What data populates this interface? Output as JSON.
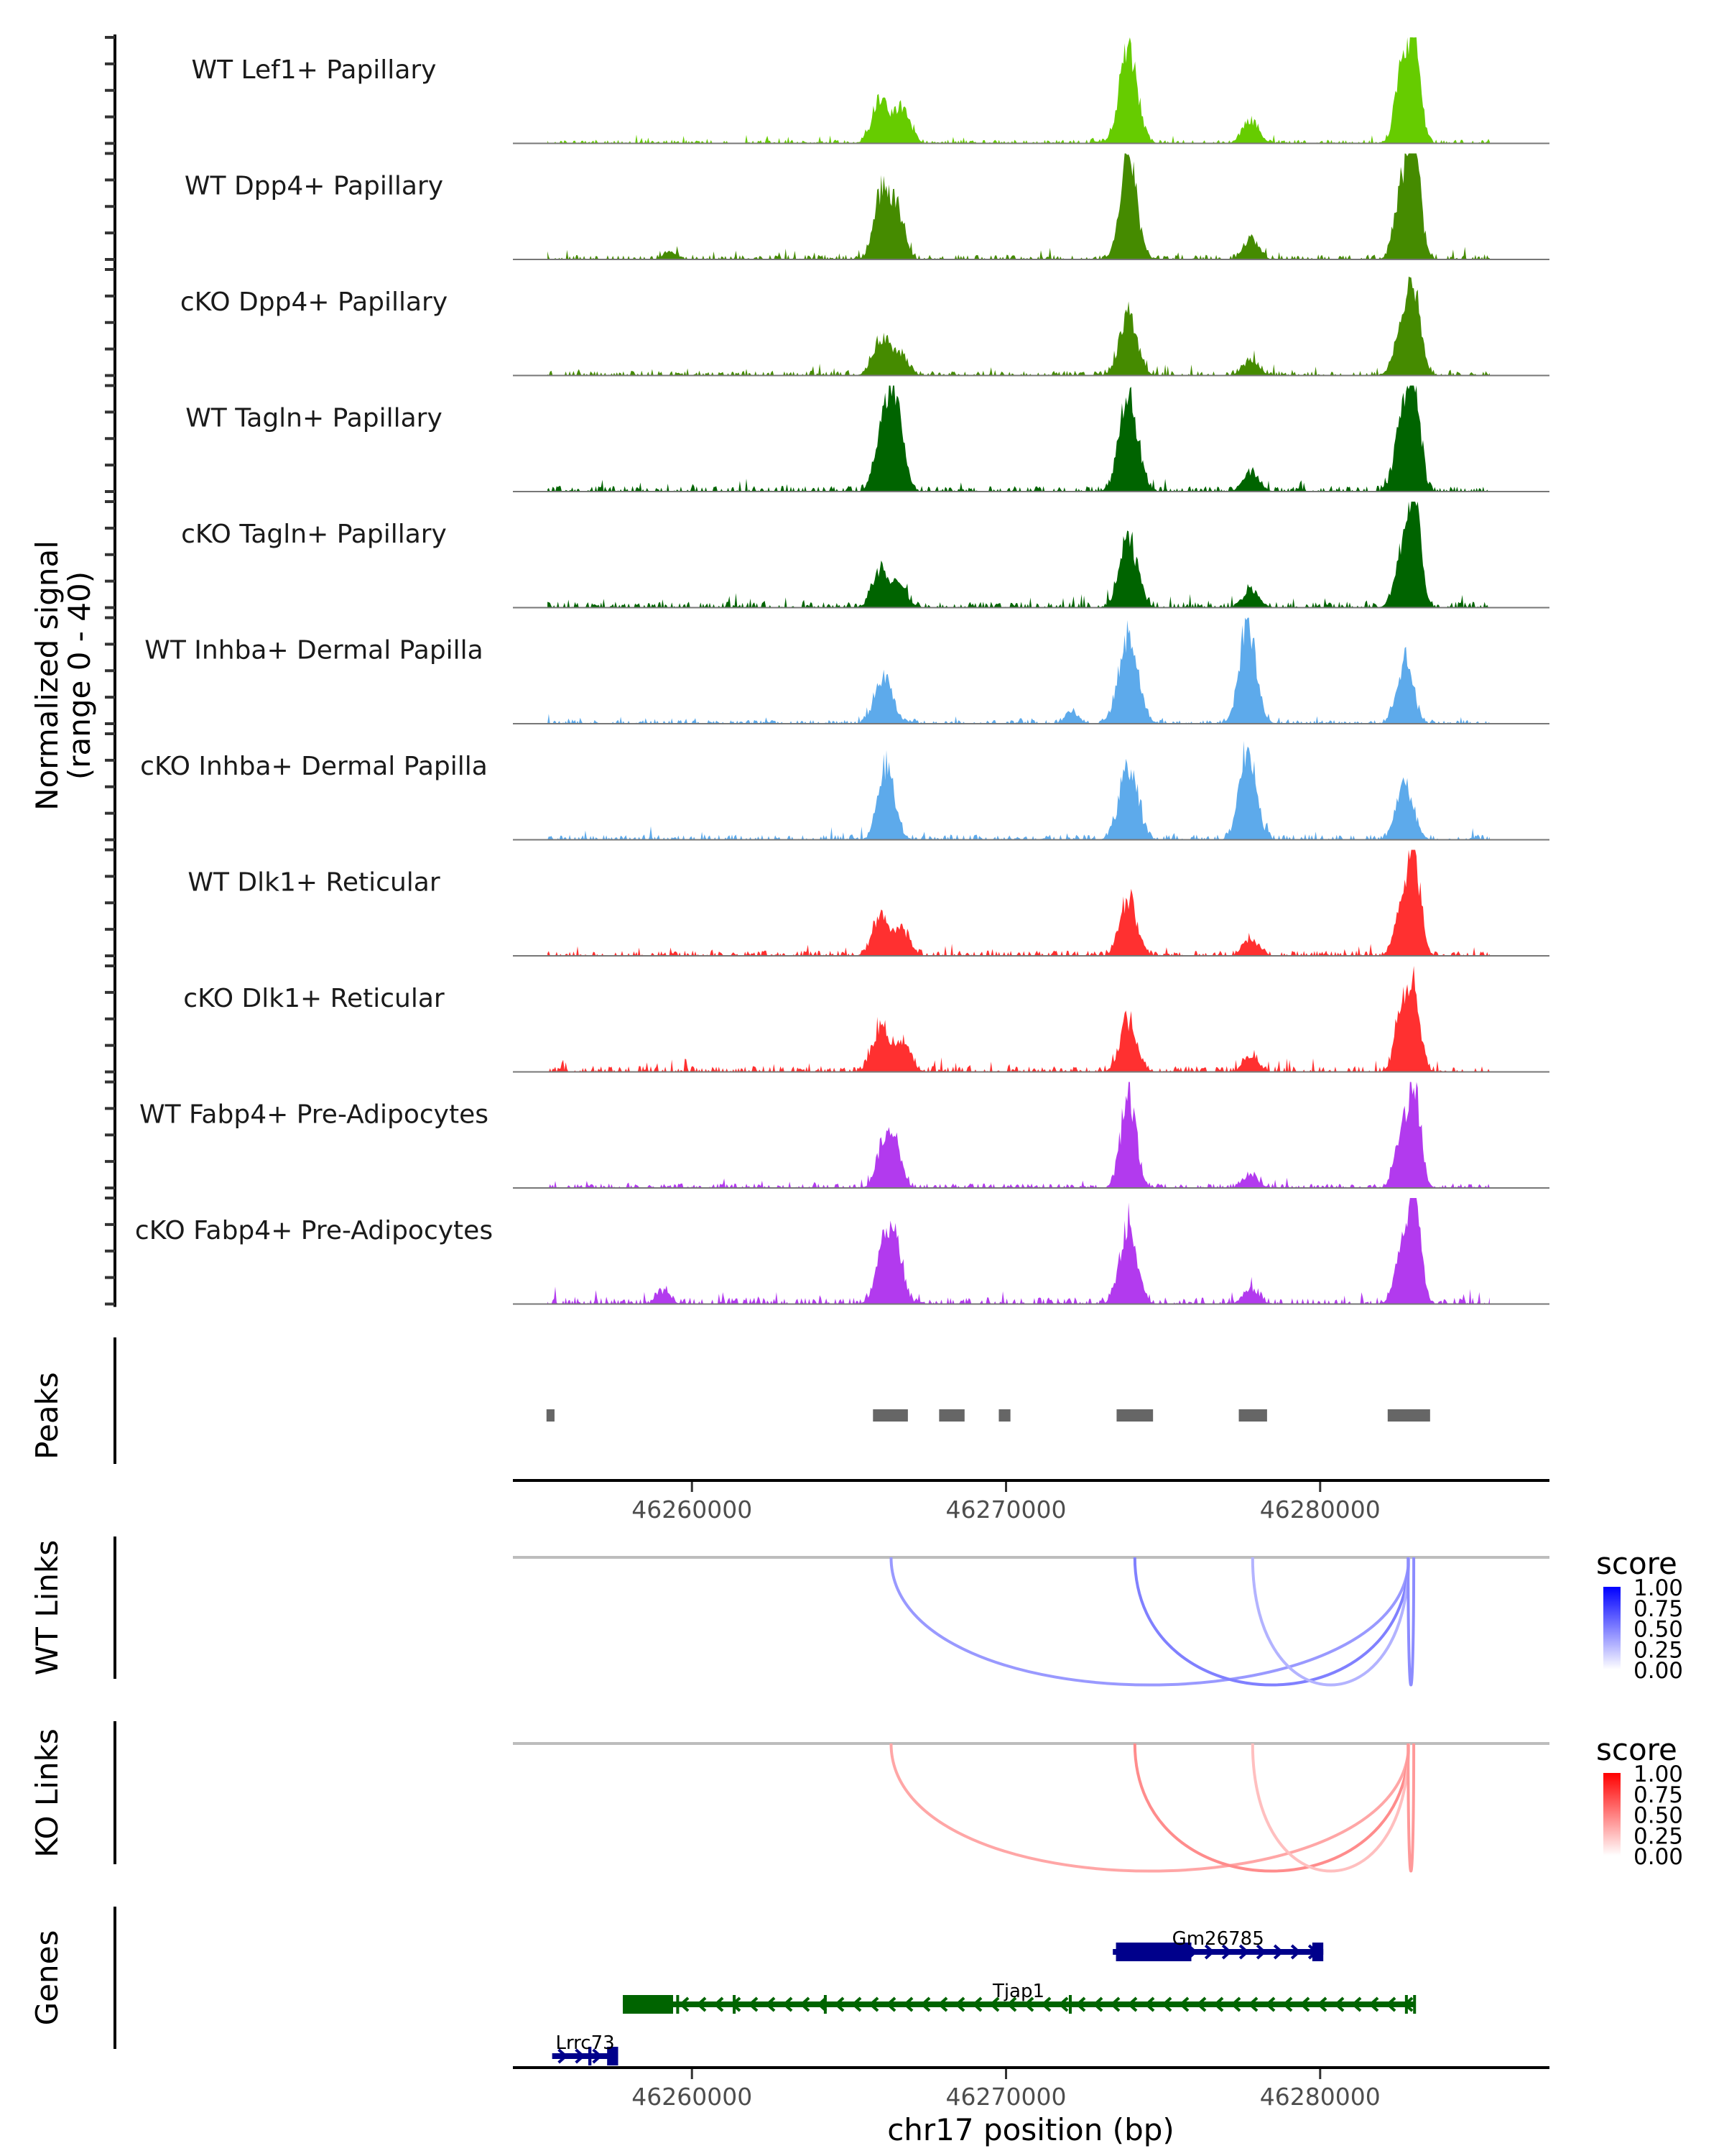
{
  "chart_data": {
    "type": "area",
    "title": "",
    "xlabel": "chr17 position (bp)",
    "ylabel": "Normalized signal\n(range 0 - 40)",
    "ylabel_lines": [
      "Normalized signal",
      "(range 0 - 40)"
    ],
    "chromosome": "chr17",
    "xlim": [
      46254300,
      46287300
    ],
    "ylim": [
      0,
      40
    ],
    "x_ticks": [
      46260000,
      46270000,
      46280000
    ],
    "x_tick_labels": [
      "46260000",
      "46270000",
      "46280000"
    ],
    "grid": false,
    "coverage_tracks": [
      {
        "name": "WT Lef1+ Papillary",
        "color": "#66CC00",
        "peaks": [
          [
            46266000,
            18,
            250
          ],
          [
            46266700,
            13,
            250
          ],
          [
            46273900,
            38,
            280
          ],
          [
            46277800,
            9,
            250
          ],
          [
            46282600,
            26,
            220
          ],
          [
            46283000,
            38,
            200
          ],
          [
            46285700,
            2,
            200
          ]
        ],
        "noise": 1.0
      },
      {
        "name": "WT Dpp4+ Papillary",
        "color": "#458B00",
        "peaks": [
          [
            46266000,
            24,
            230
          ],
          [
            46266500,
            22,
            230
          ],
          [
            46273900,
            40,
            260
          ],
          [
            46277800,
            8,
            230
          ],
          [
            46282600,
            28,
            220
          ],
          [
            46283000,
            40,
            200
          ],
          [
            46259300,
            3,
            200
          ]
        ],
        "noise": 1.3
      },
      {
        "name": "cKO Dpp4+ Papillary",
        "color": "#458B00",
        "peaks": [
          [
            46266000,
            14,
            250
          ],
          [
            46266600,
            9,
            250
          ],
          [
            46273900,
            23,
            280
          ],
          [
            46277800,
            6,
            250
          ],
          [
            46282600,
            18,
            240
          ],
          [
            46283000,
            30,
            220
          ]
        ],
        "noise": 1.3
      },
      {
        "name": "WT Tagln+ Papillary",
        "color": "#006400",
        "peaks": [
          [
            46266100,
            24,
            250
          ],
          [
            46266500,
            32,
            230
          ],
          [
            46273900,
            38,
            280
          ],
          [
            46277800,
            7,
            250
          ],
          [
            46282600,
            28,
            230
          ],
          [
            46283000,
            38,
            200
          ]
        ],
        "noise": 1.5
      },
      {
        "name": "cKO Tagln+ Papillary",
        "color": "#006400",
        "peaks": [
          [
            46266000,
            14,
            250
          ],
          [
            46266600,
            8,
            250
          ],
          [
            46273900,
            27,
            280
          ],
          [
            46277800,
            7,
            250
          ],
          [
            46282600,
            18,
            230
          ],
          [
            46283000,
            40,
            200
          ]
        ],
        "noise": 1.6
      },
      {
        "name": "WT Inhba+ Dermal Papilla",
        "color": "#5DAAEB",
        "peaks": [
          [
            46266100,
            18,
            280
          ],
          [
            46273900,
            35,
            300
          ],
          [
            46277700,
            40,
            260
          ],
          [
            46282700,
            25,
            250
          ],
          [
            46272100,
            5,
            200
          ]
        ],
        "noise": 1.0
      },
      {
        "name": "cKO Inhba+ Dermal Papilla",
        "color": "#5DAAEB",
        "peaks": [
          [
            46266200,
            30,
            250
          ],
          [
            46273900,
            30,
            280
          ],
          [
            46277700,
            35,
            260
          ],
          [
            46282700,
            22,
            260
          ]
        ],
        "noise": 1.4
      },
      {
        "name": "WT Dlk1+ Reticular",
        "color": "#FF3030",
        "peaks": [
          [
            46266000,
            15,
            250
          ],
          [
            46266700,
            10,
            250
          ],
          [
            46273900,
            23,
            260
          ],
          [
            46277800,
            6,
            240
          ],
          [
            46282600,
            20,
            220
          ],
          [
            46283000,
            38,
            200
          ]
        ],
        "noise": 1.4
      },
      {
        "name": "cKO Dlk1+ Reticular",
        "color": "#FF3030",
        "peaks": [
          [
            46266000,
            17,
            250
          ],
          [
            46266700,
            12,
            250
          ],
          [
            46273900,
            20,
            260
          ],
          [
            46277800,
            6,
            240
          ],
          [
            46282600,
            20,
            220
          ],
          [
            46283000,
            30,
            200
          ]
        ],
        "noise": 1.6
      },
      {
        "name": "WT Fabp4+ Pre-Adipocytes",
        "color": "#B23AEE",
        "peaks": [
          [
            46266100,
            17,
            220
          ],
          [
            46266500,
            16,
            200
          ],
          [
            46273900,
            37,
            240
          ],
          [
            46277800,
            5,
            230
          ],
          [
            46282600,
            20,
            220
          ],
          [
            46283000,
            35,
            200
          ]
        ],
        "noise": 1.2
      },
      {
        "name": "cKO Fabp4+ Pre-Adipocytes",
        "color": "#B23AEE",
        "peaks": [
          [
            46266100,
            20,
            250
          ],
          [
            46266500,
            22,
            220
          ],
          [
            46273900,
            32,
            260
          ],
          [
            46277800,
            6,
            240
          ],
          [
            46282600,
            20,
            220
          ],
          [
            46283000,
            38,
            200
          ],
          [
            46259100,
            5,
            200
          ]
        ],
        "noise": 1.8
      }
    ],
    "peaks_track": {
      "label": "Peaks",
      "color": "#666666",
      "regions": [
        [
          46255370,
          46255625
        ],
        [
          46265764,
          46266875
        ],
        [
          46267870,
          46268680
        ],
        [
          46269770,
          46270140
        ],
        [
          46273520,
          46274680
        ],
        [
          46277410,
          46278310
        ],
        [
          46282150,
          46283500
        ]
      ]
    },
    "link_tracks": [
      {
        "label": "WT Links",
        "legend_title": "score",
        "low_color": "#FFFFFF",
        "high_color": "#0000FF",
        "links": [
          {
            "start": 46266340,
            "end": 46282820,
            "score": 0.4
          },
          {
            "start": 46274100,
            "end": 46282820,
            "score": 0.5
          },
          {
            "start": 46277850,
            "end": 46282820,
            "score": 0.3
          },
          {
            "start": 46282800,
            "end": 46282980,
            "score": 0.45
          }
        ]
      },
      {
        "label": "KO Links",
        "legend_title": "score",
        "low_color": "#FFFFFF",
        "high_color": "#FF0000",
        "links": [
          {
            "start": 46266340,
            "end": 46282820,
            "score": 0.35
          },
          {
            "start": 46274100,
            "end": 46282820,
            "score": 0.45
          },
          {
            "start": 46277850,
            "end": 46282820,
            "score": 0.25
          },
          {
            "start": 46282800,
            "end": 46282980,
            "score": 0.4
          }
        ]
      }
    ],
    "legend_ticks": [
      "1.00",
      "0.75",
      "0.50",
      "0.25",
      "0.00"
    ],
    "genes_track": {
      "label": "Genes",
      "genes": [
        {
          "name": "Gm26785",
          "start": 46273400,
          "end": 46280100,
          "strand": "+",
          "color": "#00008B",
          "row": 0,
          "exons": [
            [
              46273500,
              46275900
            ],
            [
              46279750,
              46280100
            ]
          ]
        },
        {
          "name": "Tjap1",
          "start": 46257800,
          "end": 46283000,
          "strand": "-",
          "color": "#006400",
          "row": 1,
          "exons": [
            [
              46257800,
              46259400
            ],
            [
              46259500,
              46259560
            ],
            [
              46261300,
              46261360
            ],
            [
              46264200,
              46264250
            ],
            [
              46272000,
              46272050
            ],
            [
              46282700,
              46282760
            ],
            [
              46282960,
              46283000
            ]
          ]
        },
        {
          "name": "Lrrc73",
          "start": 46255550,
          "end": 46257650,
          "strand": "+",
          "color": "#00008B",
          "row": 2,
          "exons": [
            [
              46256700,
              46256800
            ],
            [
              46257300,
              46257650
            ]
          ]
        }
      ]
    }
  }
}
